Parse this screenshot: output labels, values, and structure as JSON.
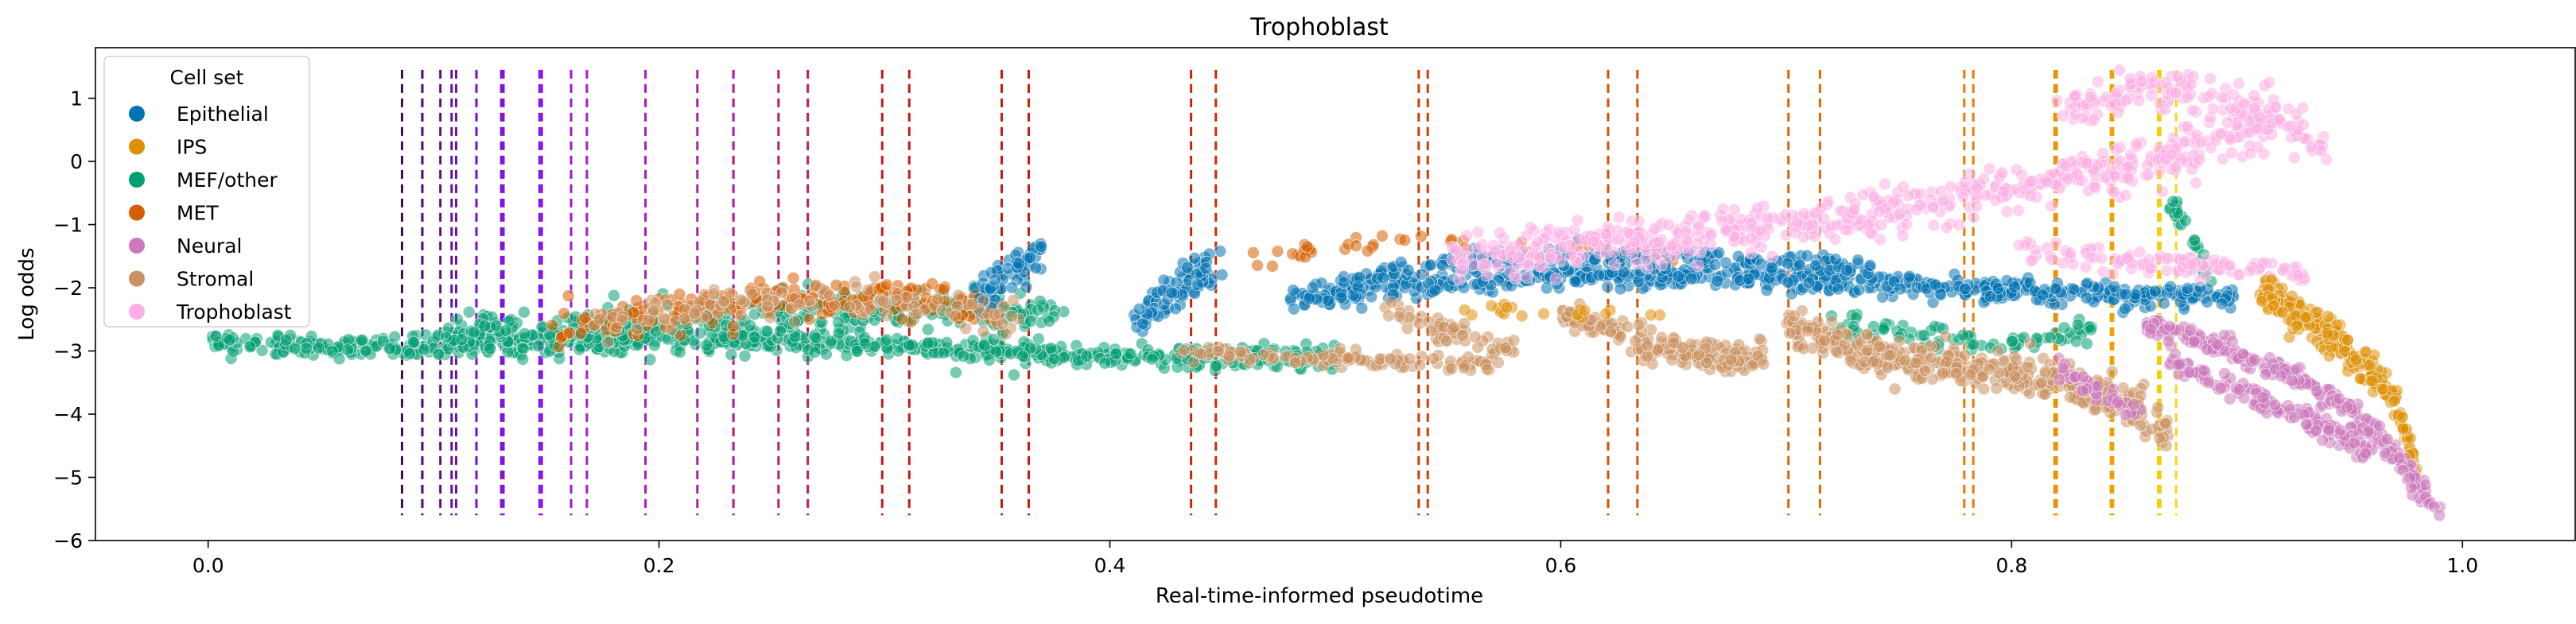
{
  "chart_data": {
    "type": "scatter",
    "title": "Trophoblast",
    "xlabel": "Real-time-informed pseudotime",
    "ylabel": "Log odds",
    "xlim": [
      -0.05,
      1.05
    ],
    "ylim": [
      -6.0,
      1.8
    ],
    "xticks": [
      {
        "value": 0.0,
        "label": "0.0"
      },
      {
        "value": 0.2,
        "label": "0.2"
      },
      {
        "value": 0.4,
        "label": "0.4"
      },
      {
        "value": 0.6,
        "label": "0.6"
      },
      {
        "value": 0.8,
        "label": "0.8"
      },
      {
        "value": 1.0,
        "label": "1.0"
      }
    ],
    "yticks": [
      {
        "value": 1,
        "label": "1"
      },
      {
        "value": 0,
        "label": "0"
      },
      {
        "value": -1,
        "label": "−1"
      },
      {
        "value": -2,
        "label": "−2"
      },
      {
        "value": -3,
        "label": "−3"
      },
      {
        "value": -4,
        "label": "−4"
      },
      {
        "value": -5,
        "label": "−5"
      },
      {
        "value": -6,
        "label": "−6"
      }
    ],
    "grid": false,
    "legend": {
      "title": "Cell set",
      "position": "upper-left",
      "entries": [
        {
          "label": "Epithelial",
          "color": "#0173b2"
        },
        {
          "label": "IPS",
          "color": "#de8f05"
        },
        {
          "label": "MEF/other",
          "color": "#029e73"
        },
        {
          "label": "MET",
          "color": "#d55e00"
        },
        {
          "label": "Neural",
          "color": "#cc78bc"
        },
        {
          "label": "Stromal",
          "color": "#ca9161"
        },
        {
          "label": "Trophoblast",
          "color": "#fbafe4"
        }
      ]
    },
    "point_alpha": 0.55,
    "vlines": {
      "style": "dashed",
      "ymin": -5.6,
      "ymax": 1.45,
      "x": [
        0.086,
        0.095,
        0.103,
        0.108,
        0.11,
        0.119,
        0.13,
        0.131,
        0.147,
        0.148,
        0.161,
        0.168,
        0.194,
        0.217,
        0.233,
        0.253,
        0.266,
        0.299,
        0.311,
        0.352,
        0.364,
        0.436,
        0.447,
        0.537,
        0.541,
        0.621,
        0.634,
        0.701,
        0.715,
        0.779,
        0.783,
        0.819,
        0.82,
        0.844,
        0.845,
        0.865,
        0.866,
        0.873
      ],
      "colors": [
        "#3b0f4f",
        "#4a0c6b",
        "#57106e",
        "#5d0fa3",
        "#6a0dad",
        "#7411d8",
        "#7f12e8",
        "#7f12e8",
        "#8a14ee",
        "#8a14ee",
        "#9b19d4",
        "#a11fc8",
        "#a21cc0",
        "#a81ca8",
        "#b01b97",
        "#b81b6a",
        "#bb1a63",
        "#c2171f",
        "#c4181c",
        "#c81a12",
        "#c91b10",
        "#cc2604",
        "#cd2a04",
        "#d03c04",
        "#d03d04",
        "#d85006",
        "#da5306",
        "#df6306",
        "#e06806",
        "#e47a05",
        "#e47c05",
        "#e99003",
        "#e99103",
        "#eea202",
        "#eea302",
        "#f5cc00",
        "#f5cd00",
        "#f8d817"
      ]
    },
    "series": [
      {
        "name": "MEF/other",
        "color": "#029e73",
        "segments": [
          {
            "x": [
              0.0,
              0.05,
              0.1,
              0.15,
              0.2,
              0.25,
              0.3,
              0.35,
              0.4,
              0.45,
              0.5
            ],
            "y": [
              -2.85,
              -2.95,
              -2.9,
              -2.85,
              -2.8,
              -2.85,
              -2.9,
              -3.0,
              -3.1,
              -3.1,
              -3.1
            ],
            "spread": 0.15,
            "n": 700
          },
          {
            "x": [
              0.1,
              0.15,
              0.2,
              0.25,
              0.3,
              0.35,
              0.38
            ],
            "y": [
              -2.8,
              -2.65,
              -2.55,
              -2.45,
              -2.35,
              -2.35,
              -2.4
            ],
            "spread": 0.25,
            "n": 350
          },
          {
            "x": [
              0.72,
              0.76,
              0.8,
              0.84
            ],
            "y": [
              -2.6,
              -2.75,
              -2.9,
              -2.6
            ],
            "spread": 0.15,
            "n": 80
          },
          {
            "x": [
              0.87,
              0.88,
              0.89
            ],
            "y": [
              -0.6,
              -1.3,
              -2.0
            ],
            "spread": 0.2,
            "n": 30
          }
        ]
      },
      {
        "name": "MET",
        "color": "#d55e00",
        "segments": [
          {
            "x": [
              0.15,
              0.2,
              0.25,
              0.3,
              0.35
            ],
            "y": [
              -2.7,
              -2.4,
              -2.2,
              -2.15,
              -2.3
            ],
            "spread": 0.25,
            "n": 220
          },
          {
            "x": [
              0.46,
              0.5,
              0.55,
              0.6,
              0.65
            ],
            "y": [
              -1.6,
              -1.3,
              -1.2,
              -1.4,
              -1.5
            ],
            "spread": 0.15,
            "n": 40
          }
        ]
      },
      {
        "name": "Epithelial",
        "color": "#0173b2",
        "segments": [
          {
            "x": [
              0.34,
              0.355,
              0.37
            ],
            "y": [
              -2.2,
              -1.8,
              -1.4
            ],
            "spread": 0.25,
            "n": 60
          },
          {
            "x": [
              0.41,
              0.43,
              0.45
            ],
            "y": [
              -2.6,
              -2.0,
              -1.6
            ],
            "spread": 0.25,
            "n": 80
          },
          {
            "x": [
              0.48,
              0.55,
              0.6,
              0.65,
              0.7,
              0.75,
              0.8,
              0.85,
              0.9
            ],
            "y": [
              -2.2,
              -1.9,
              -1.8,
              -1.8,
              -1.85,
              -1.95,
              -2.05,
              -2.1,
              -2.15
            ],
            "spread": 0.15,
            "n": 600
          },
          {
            "x": [
              0.5,
              0.55,
              0.6,
              0.65,
              0.7,
              0.75
            ],
            "y": [
              -1.9,
              -1.6,
              -1.5,
              -1.5,
              -1.6,
              -1.7
            ],
            "spread": 0.12,
            "n": 200
          }
        ]
      },
      {
        "name": "Stromal",
        "color": "#ca9161",
        "segments": [
          {
            "x": [
              0.17,
              0.22,
              0.27,
              0.32,
              0.36
            ],
            "y": [
              -2.6,
              -2.3,
              -2.2,
              -2.3,
              -2.5
            ],
            "spread": 0.25,
            "n": 120
          },
          {
            "x": [
              0.43,
              0.47,
              0.52,
              0.57
            ],
            "y": [
              -3.0,
              -3.1,
              -3.15,
              -3.2
            ],
            "spread": 0.1,
            "n": 120
          },
          {
            "x": [
              0.52,
              0.55,
              0.58
            ],
            "y": [
              -2.3,
              -2.7,
              -3.0
            ],
            "spread": 0.15,
            "n": 60
          },
          {
            "x": [
              0.6,
              0.63,
              0.66,
              0.69
            ],
            "y": [
              -2.4,
              -2.8,
              -3.05,
              -3.15
            ],
            "spread": 0.2,
            "n": 180
          },
          {
            "x": [
              0.7,
              0.73,
              0.76,
              0.79,
              0.82,
              0.85,
              0.87
            ],
            "y": [
              -2.6,
              -3.0,
              -3.2,
              -3.3,
              -3.5,
              -3.8,
              -4.3
            ],
            "spread": 0.25,
            "n": 400
          }
        ]
      },
      {
        "name": "Trophoblast",
        "color": "#fbafe4",
        "segments": [
          {
            "x": [
              0.55,
              0.6,
              0.65,
              0.7,
              0.75,
              0.8,
              0.85,
              0.9,
              0.92
            ],
            "y": [
              -1.6,
              -1.4,
              -1.2,
              -1.0,
              -0.8,
              -0.4,
              -0.1,
              0.4,
              0.7
            ],
            "spread": 0.3,
            "n": 600
          },
          {
            "x": [
              0.82,
              0.86,
              0.89,
              0.91,
              0.94
            ],
            "y": [
              0.8,
              1.2,
              1.0,
              0.8,
              0.2
            ],
            "spread": 0.3,
            "n": 150
          },
          {
            "x": [
              0.8,
              0.85,
              0.9,
              0.93
            ],
            "y": [
              -1.4,
              -1.6,
              -1.7,
              -1.8
            ],
            "spread": 0.15,
            "n": 120
          }
        ]
      },
      {
        "name": "IPS",
        "color": "#de8f05",
        "segments": [
          {
            "x": [
              0.91,
              0.93,
              0.95,
              0.97,
              0.98
            ],
            "y": [
              -2.0,
              -2.5,
              -3.0,
              -3.8,
              -5.0
            ],
            "spread": 0.22,
            "n": 260
          },
          {
            "x": [
              0.55,
              0.6,
              0.65
            ],
            "y": [
              -2.4,
              -2.3,
              -2.5
            ],
            "spread": 0.1,
            "n": 20
          }
        ]
      },
      {
        "name": "Neural",
        "color": "#cc78bc",
        "segments": [
          {
            "x": [
              0.86,
              0.89,
              0.92,
              0.95,
              0.97,
              0.99
            ],
            "y": [
              -2.6,
              -2.9,
              -3.3,
              -3.9,
              -4.6,
              -5.6
            ],
            "spread": 0.15,
            "n": 260
          },
          {
            "x": [
              0.87,
              0.9,
              0.93,
              0.96
            ],
            "y": [
              -3.2,
              -3.6,
              -4.1,
              -4.6
            ],
            "spread": 0.15,
            "n": 140
          },
          {
            "x": [
              0.82,
              0.84,
              0.86
            ],
            "y": [
              -3.3,
              -3.7,
              -4.1
            ],
            "spread": 0.2,
            "n": 40
          }
        ]
      }
    ]
  }
}
